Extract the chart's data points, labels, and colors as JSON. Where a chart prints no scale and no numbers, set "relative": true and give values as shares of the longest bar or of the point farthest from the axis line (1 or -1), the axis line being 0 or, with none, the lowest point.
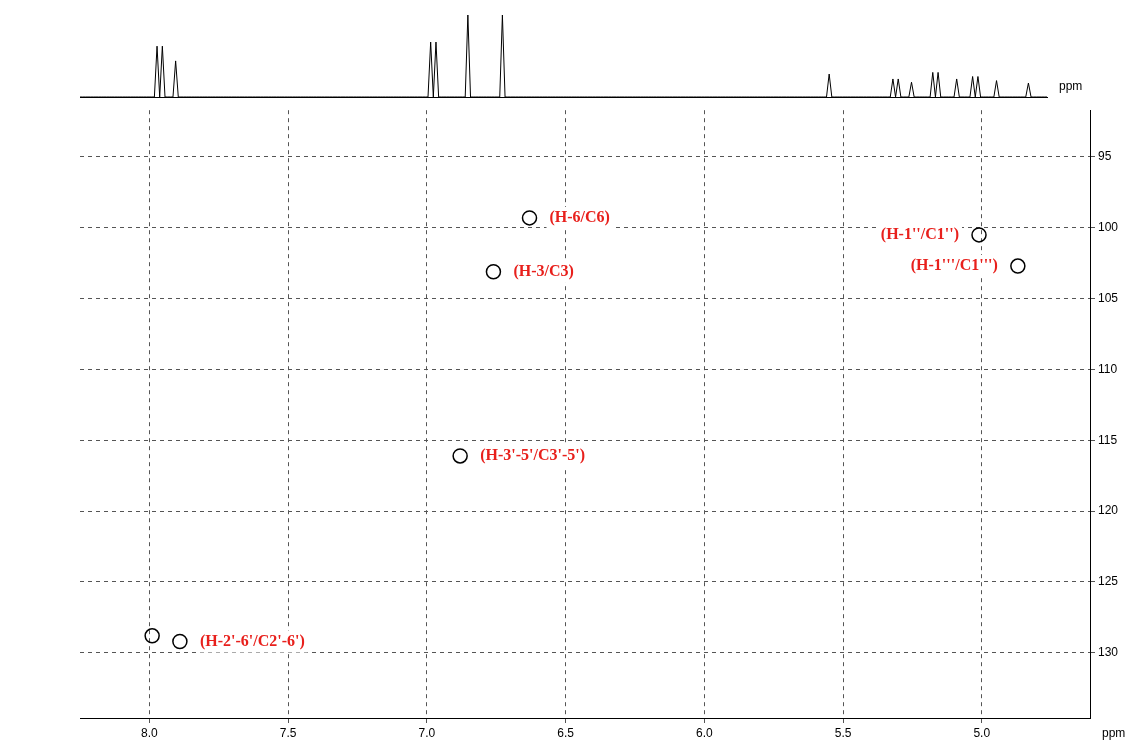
{
  "chart_data": [
    {
      "type": "line",
      "relative": true,
      "xlabel": "ppm",
      "color": "#000000",
      "marker": "none",
      "categories": [
        null,
        null,
        null,
        null,
        null,
        null,
        null,
        null,
        null,
        null,
        null,
        null,
        null,
        null,
        null,
        null,
        null,
        null,
        null,
        null,
        null,
        null,
        null,
        null,
        null,
        null,
        null,
        null,
        null,
        null,
        null,
        null,
        null,
        null,
        null,
        null,
        null,
        null,
        null,
        null,
        null,
        null,
        null,
        null,
        null,
        null,
        null,
        null,
        null,
        null,
        null,
        null,
        null,
        null,
        null,
        null,
        null,
        null,
        null,
        null,
        null,
        null,
        null,
        null,
        null,
        null,
        null,
        null,
        null,
        null,
        null,
        null,
        null,
        null,
        null,
        null,
        null,
        null,
        null,
        null,
        null,
        null,
        null,
        null,
        null,
        null,
        null,
        null,
        null,
        null,
        null,
        null,
        null,
        null,
        null,
        null,
        null,
        null,
        null,
        null,
        null,
        null,
        null,
        null,
        null,
        null,
        null,
        null,
        null,
        null,
        null,
        null,
        null,
        null,
        null,
        null,
        null,
        null,
        null,
        null,
        null,
        null,
        null,
        null,
        null,
        null,
        null,
        null,
        null,
        null,
        null,
        null,
        null,
        null,
        null,
        null,
        null,
        null,
        null,
        null,
        null,
        null,
        null,
        null,
        null,
        null,
        null,
        null,
        null,
        null,
        null,
        null,
        null,
        null,
        null,
        null,
        null,
        null,
        null,
        null,
        null,
        null,
        null,
        null,
        null,
        null,
        null,
        null,
        null,
        null,
        null,
        null,
        null,
        null,
        null,
        null,
        null,
        null,
        null,
        null,
        null,
        null,
        null,
        null,
        null,
        null,
        null,
        null,
        null,
        null,
        null,
        null,
        null,
        null,
        null,
        null,
        null,
        null,
        null,
        null,
        null,
        null,
        null,
        null,
        null,
        null,
        null,
        null,
        null,
        null,
        null,
        null,
        null,
        null,
        null,
        null,
        null,
        null,
        null,
        null,
        null,
        null,
        null,
        null,
        null,
        null,
        null,
        null,
        null,
        null,
        null,
        null,
        null,
        null,
        null,
        null,
        null,
        null,
        null,
        null,
        null,
        null,
        null,
        null,
        null,
        null,
        null,
        null,
        null,
        null,
        null,
        null,
        null,
        null,
        null,
        null,
        null,
        null,
        null,
        null,
        null,
        null,
        null,
        null,
        null,
        null,
        null,
        null,
        null,
        null,
        null,
        null,
        null,
        null,
        null,
        null,
        null,
        null,
        null,
        null,
        null,
        null,
        null,
        null,
        null,
        null,
        null,
        null,
        null,
        null,
        null,
        null,
        null,
        null,
        null,
        null,
        null,
        null,
        null,
        null,
        null,
        null,
        null,
        null,
        null,
        null,
        null,
        null,
        null,
        null,
        null,
        null,
        null,
        null,
        null,
        null,
        null,
        null,
        null,
        null,
        null,
        null,
        null,
        null,
        null,
        null,
        null,
        null,
        null,
        null,
        null,
        null,
        null,
        null,
        null,
        null,
        null,
        null,
        null,
        null,
        null,
        null,
        null,
        null,
        null,
        null,
        null,
        null,
        null,
        null,
        null,
        null,
        null,
        null,
        null,
        null,
        null,
        null,
        null,
        null,
        null,
        null,
        null,
        null,
        null
      ],
      "values": [
        0,
        0,
        0,
        0,
        0,
        0,
        0,
        0,
        0,
        0,
        0,
        0,
        0,
        0,
        0,
        0,
        0,
        0,
        0,
        0,
        0,
        0,
        0,
        0,
        0,
        0,
        0,
        0,
        0,
        0.62,
        0,
        0.62,
        0,
        0,
        0,
        0,
        0.44,
        0,
        0,
        0,
        0,
        0,
        0,
        0,
        0,
        0,
        0,
        0,
        0,
        0,
        0,
        0,
        0,
        0,
        0,
        0,
        0,
        0,
        0,
        0,
        0,
        0,
        0,
        0,
        0,
        0,
        0,
        0,
        0,
        0,
        0,
        0,
        0,
        0,
        0,
        0,
        0,
        0,
        0,
        0,
        0,
        0,
        0,
        0,
        0,
        0,
        0,
        0,
        0,
        0,
        0,
        0,
        0,
        0,
        0,
        0,
        0,
        0,
        0,
        0,
        0,
        0,
        0,
        0,
        0,
        0,
        0,
        0,
        0,
        0,
        0,
        0,
        0,
        0,
        0,
        0,
        0,
        0,
        0,
        0,
        0,
        0,
        0,
        0,
        0,
        0,
        0,
        0,
        0,
        0,
        0,
        0,
        0.67,
        0,
        0.67,
        0,
        0,
        0,
        0,
        0,
        0,
        0,
        0,
        0,
        0,
        0,
        1,
        0,
        0,
        0,
        0,
        0,
        0,
        0,
        0,
        0,
        0,
        0,
        0,
        1,
        0,
        0,
        0,
        0,
        0,
        0,
        0,
        0,
        0,
        0,
        0,
        0,
        0,
        0,
        0,
        0,
        0,
        0,
        0,
        0,
        0,
        0,
        0,
        0,
        0,
        0,
        0,
        0,
        0,
        0,
        0,
        0,
        0,
        0,
        0,
        0,
        0,
        0,
        0,
        0,
        0,
        0,
        0,
        0,
        0,
        0,
        0,
        0,
        0,
        0,
        0,
        0,
        0,
        0,
        0,
        0,
        0,
        0,
        0,
        0,
        0,
        0,
        0,
        0,
        0,
        0,
        0,
        0,
        0,
        0,
        0,
        0,
        0,
        0,
        0,
        0,
        0,
        0,
        0,
        0,
        0,
        0,
        0,
        0,
        0,
        0,
        0,
        0,
        0,
        0,
        0,
        0,
        0,
        0,
        0,
        0,
        0,
        0,
        0,
        0,
        0,
        0,
        0,
        0,
        0,
        0,
        0,
        0,
        0,
        0,
        0,
        0,
        0,
        0,
        0,
        0,
        0,
        0,
        0,
        0,
        0,
        0,
        0.28,
        0,
        0,
        0,
        0,
        0,
        0,
        0,
        0,
        0,
        0,
        0,
        0,
        0,
        0,
        0,
        0,
        0,
        0,
        0,
        0,
        0,
        0,
        0,
        0.22,
        0,
        0.22,
        0,
        0,
        0,
        0,
        0.18,
        0,
        0,
        0,
        0,
        0,
        0,
        0,
        0.3,
        0,
        0.3,
        0,
        0,
        0,
        0,
        0,
        0,
        0.22,
        0,
        0,
        0,
        0,
        0,
        0.25,
        0,
        0.25,
        0,
        0,
        0,
        0,
        0,
        0,
        0.2,
        0,
        0,
        0,
        0,
        0,
        0,
        0,
        0,
        0,
        0,
        0,
        0.17,
        0,
        0,
        0,
        0,
        0,
        0,
        0
      ]
    },
    {
      "type": "scatter",
      "xlabel": "ppm",
      "xlim": [
        8.25,
        4.61
      ],
      "ylim": [
        134.6,
        91.7
      ],
      "color": "#000000",
      "marker": "circle",
      "grid": true,
      "line_style": "dashed",
      "xticks": [
        {
          "value": 8,
          "label": "8.0"
        },
        7.5,
        {
          "value": 7,
          "label": "7.0"
        },
        6.5,
        {
          "value": 6,
          "label": "6.0"
        },
        5.5,
        {
          "value": 5,
          "label": "5.0"
        }
      ],
      "yticks": [
        95,
        100,
        105,
        110,
        115,
        120,
        125,
        130
      ],
      "x": [
        6.63,
        6.76,
        5.01,
        4.87,
        6.88,
        7.89,
        7.99
      ],
      "values": [
        99.3,
        103.1,
        100.5,
        102.7,
        116.1,
        129.2,
        128.8
      ],
      "value_labels": [
        "(H-6/C6)",
        "(H-3/C3)",
        "(H-1''/C1'')",
        "(H-1'''/C1''')",
        "(H-3'-5'/C3'-5')",
        "(H-2'-6'/C2'-6')",
        null
      ]
    }
  ]
}
